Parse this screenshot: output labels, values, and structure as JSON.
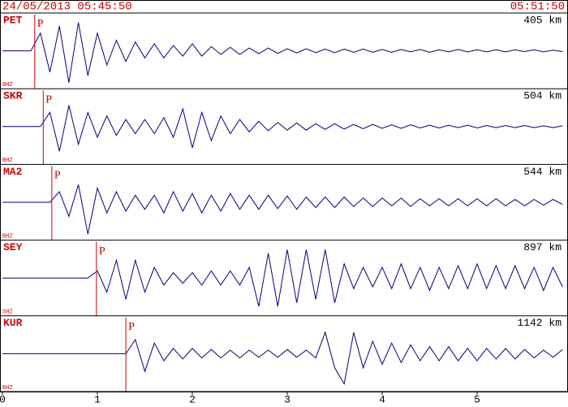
{
  "chart_data": {
    "type": "seismogram",
    "title": "24/05/2013 05:45:50",
    "end_time": "05:51:50",
    "color": "#00007f",
    "marker_color": "#cc0000",
    "xlim": [
      0,
      5.94
    ],
    "xticks": [
      0,
      1,
      2,
      3,
      4,
      5
    ],
    "ylim": [
      -1,
      1
    ],
    "x": [
      0,
      0.1,
      0.2,
      0.3,
      0.4,
      0.5,
      0.6,
      0.7,
      0.8,
      0.9,
      1,
      1.1,
      1.2,
      1.3,
      1.4,
      1.5,
      1.6,
      1.7,
      1.8,
      1.9,
      2,
      2.1,
      2.2,
      2.3,
      2.4,
      2.5,
      2.6,
      2.7,
      2.8,
      2.9,
      3,
      3.1,
      3.2,
      3.3,
      3.4,
      3.5,
      3.6,
      3.7,
      3.8,
      3.9,
      4,
      4.1,
      4.2,
      4.3,
      4.4,
      4.5,
      4.6,
      4.7,
      4.8,
      4.9,
      5,
      5.1,
      5.2,
      5.3,
      5.4,
      5.5,
      5.6,
      5.7,
      5.8,
      5.9
    ],
    "series": [
      {
        "name": "PET",
        "distance": "405 km",
        "channel": "BHZ",
        "phase": "P",
        "p_time": 0.34,
        "values": [
          0,
          0,
          0,
          0,
          0.5,
          -0.6,
          0.7,
          -0.9,
          0.8,
          -0.7,
          0.5,
          -0.4,
          0.3,
          -0.3,
          0.25,
          -0.2,
          0.2,
          -0.2,
          0.15,
          -0.15,
          0.2,
          -0.15,
          0.12,
          -0.1,
          0.1,
          -0.1,
          0.08,
          -0.08,
          0.08,
          -0.07,
          0.06,
          -0.06,
          0.06,
          -0.05,
          0.05,
          -0.05,
          0.05,
          -0.04,
          0.05,
          -0.04,
          0.04,
          -0.04,
          0.04,
          -0.03,
          0.04,
          -0.04,
          0.03,
          -0.03,
          0.04,
          -0.03,
          0.03,
          -0.03,
          0.03,
          -0.03,
          0.03,
          -0.02,
          0.03,
          -0.03,
          0.02,
          -0.02
        ]
      },
      {
        "name": "SKR",
        "distance": "504 km",
        "channel": "BHZ",
        "phase": "P",
        "p_time": 0.43,
        "values": [
          0,
          0,
          0,
          0,
          0,
          0.4,
          -0.7,
          0.6,
          -0.5,
          0.4,
          -0.3,
          0.3,
          -0.25,
          0.2,
          -0.2,
          0.2,
          -0.2,
          0.25,
          -0.3,
          0.5,
          -0.6,
          0.4,
          -0.4,
          0.3,
          -0.2,
          0.2,
          -0.15,
          0.15,
          -0.12,
          0.12,
          -0.1,
          0.1,
          -0.1,
          0.08,
          -0.08,
          0.08,
          -0.07,
          0.06,
          -0.06,
          0.06,
          -0.05,
          0.05,
          -0.05,
          0.05,
          -0.04,
          0.04,
          -0.04,
          0.04,
          -0.03,
          0.04,
          -0.04,
          0.03,
          -0.03,
          0.03,
          -0.03,
          0.03,
          -0.03,
          0.02,
          -0.03,
          0.02
        ]
      },
      {
        "name": "MA2",
        "distance": "544 km",
        "channel": "BHZ",
        "phase": "P",
        "p_time": 0.52,
        "values": [
          0,
          0,
          0,
          0,
          0,
          0,
          0.3,
          -0.4,
          0.5,
          -0.9,
          0.4,
          -0.3,
          0.3,
          -0.25,
          0.2,
          -0.2,
          0.2,
          -0.3,
          0.3,
          -0.25,
          0.25,
          -0.3,
          0.2,
          -0.25,
          0.25,
          -0.2,
          0.2,
          -0.2,
          0.2,
          -0.18,
          0.18,
          -0.2,
          0.15,
          -0.15,
          0.15,
          -0.15,
          0.15,
          -0.12,
          0.12,
          -0.12,
          0.12,
          -0.1,
          0.12,
          -0.12,
          0.1,
          -0.1,
          0.1,
          -0.1,
          0.1,
          -0.1,
          0.1,
          -0.1,
          0.1,
          -0.1,
          0.08,
          -0.1,
          0.08,
          -0.08,
          0.08,
          -0.06
        ]
      },
      {
        "name": "SEY",
        "distance": "897 km",
        "channel": "SHZ",
        "phase": "P",
        "p_time": 0.99,
        "values": [
          0,
          0,
          0,
          0,
          0,
          0,
          0,
          0,
          0,
          0,
          0.2,
          -0.4,
          0.5,
          -0.6,
          0.5,
          -0.4,
          0.3,
          -0.2,
          0.15,
          -0.15,
          0.15,
          -0.2,
          0.2,
          -0.2,
          0.2,
          -0.2,
          0.3,
          -0.8,
          0.7,
          -0.8,
          0.8,
          -0.7,
          0.8,
          -0.6,
          0.8,
          -0.7,
          0.4,
          -0.3,
          0.3,
          -0.25,
          0.3,
          -0.3,
          0.4,
          -0.3,
          0.3,
          -0.35,
          0.3,
          -0.3,
          0.35,
          -0.3,
          0.4,
          -0.3,
          0.35,
          -0.3,
          0.35,
          -0.3,
          0.3,
          -0.35,
          0.3,
          -0.25
        ]
      },
      {
        "name": "KUR",
        "distance": "1142 km",
        "channel": "BHZ",
        "phase": "P",
        "p_time": 1.3,
        "values": [
          0,
          0,
          0,
          0,
          0,
          0,
          0,
          0,
          0,
          0,
          0,
          0,
          0,
          0,
          0.4,
          -0.5,
          0.3,
          -0.2,
          0.15,
          -0.15,
          0.15,
          -0.12,
          0.12,
          -0.12,
          0.1,
          -0.12,
          0.1,
          -0.1,
          0.1,
          -0.1,
          0.12,
          -0.1,
          0.1,
          -0.12,
          0.6,
          -0.4,
          -0.85,
          0.6,
          -0.4,
          0.35,
          -0.3,
          0.3,
          -0.25,
          0.25,
          -0.2,
          0.2,
          -0.2,
          0.2,
          -0.2,
          0.15,
          -0.2,
          0.15,
          -0.15,
          0.15,
          -0.15,
          0.12,
          -0.12,
          0.1,
          -0.1,
          0.12
        ]
      }
    ]
  }
}
